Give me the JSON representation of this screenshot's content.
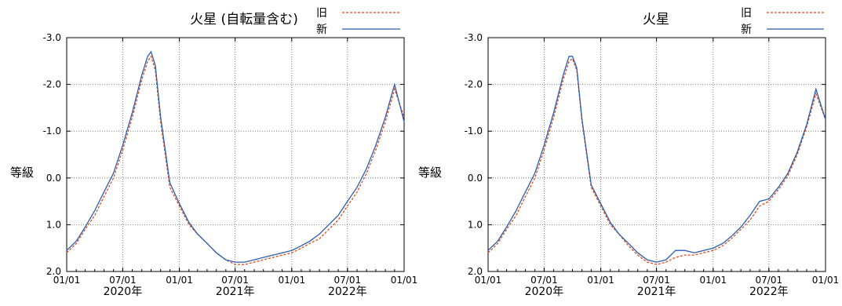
{
  "chart_data": [
    {
      "type": "line",
      "title": "火星 (自転量含む)",
      "ylabel": "等級",
      "xlabel": "",
      "ylim": [
        -3.0,
        2.0
      ],
      "y_inverted": true,
      "xlim": [
        "2020-01-01",
        "2023-01-01"
      ],
      "x_ticks": [
        "01/01",
        "07/01",
        "01/01",
        "07/01",
        "01/01",
        "07/01",
        "01/01"
      ],
      "x_tick_dates": [
        "2020-01-01",
        "2020-07-01",
        "2021-01-01",
        "2021-07-01",
        "2022-01-01",
        "2022-07-01",
        "2023-01-01"
      ],
      "year_labels": [
        "2020年",
        "2021年",
        "2022年"
      ],
      "year_label_dates": [
        "2020-07-01",
        "2021-07-01",
        "2022-07-01"
      ],
      "y_ticks": [
        "-3.0",
        "-2.0",
        "-1.0",
        "0.0",
        "1.0",
        "2.0"
      ],
      "y_tick_values": [
        -3.0,
        -2.0,
        -1.0,
        0.0,
        1.0,
        2.0
      ],
      "grid": true,
      "legend_position": "top-right",
      "series": [
        {
          "name": "旧",
          "color": "#e04a1a",
          "dash": true,
          "x": [
            "2020-01-01",
            "2020-02-01",
            "2020-03-01",
            "2020-04-01",
            "2020-05-01",
            "2020-06-01",
            "2020-07-01",
            "2020-08-01",
            "2020-09-01",
            "2020-09-20",
            "2020-10-01",
            "2020-10-15",
            "2020-11-01",
            "2020-12-01",
            "2021-01-01",
            "2021-02-01",
            "2021-03-01",
            "2021-04-01",
            "2021-05-01",
            "2021-06-01",
            "2021-07-01",
            "2021-08-01",
            "2021-09-01",
            "2021-10-01",
            "2021-11-01",
            "2021-12-01",
            "2022-01-01",
            "2022-02-01",
            "2022-03-01",
            "2022-04-01",
            "2022-05-01",
            "2022-06-01",
            "2022-07-01",
            "2022-08-01",
            "2022-09-01",
            "2022-10-01",
            "2022-11-01",
            "2022-12-01",
            "2023-01-01"
          ],
          "y": [
            1.6,
            1.4,
            1.1,
            0.8,
            0.4,
            0.0,
            -0.6,
            -1.3,
            -2.1,
            -2.5,
            -2.6,
            -2.3,
            -1.2,
            0.2,
            0.6,
            1.0,
            1.2,
            1.4,
            1.6,
            1.75,
            1.85,
            1.85,
            1.8,
            1.75,
            1.7,
            1.65,
            1.6,
            1.5,
            1.4,
            1.3,
            1.1,
            0.9,
            0.6,
            0.3,
            -0.1,
            -0.6,
            -1.2,
            -1.9,
            -1.3
          ]
        },
        {
          "name": "新",
          "color": "#2a5db0",
          "dash": false,
          "x": [
            "2020-01-01",
            "2020-02-01",
            "2020-03-01",
            "2020-04-01",
            "2020-05-01",
            "2020-06-01",
            "2020-07-01",
            "2020-08-01",
            "2020-09-01",
            "2020-09-20",
            "2020-10-01",
            "2020-10-15",
            "2020-11-01",
            "2020-12-01",
            "2021-01-01",
            "2021-02-01",
            "2021-03-01",
            "2021-04-01",
            "2021-05-01",
            "2021-06-01",
            "2021-07-01",
            "2021-08-01",
            "2021-09-01",
            "2021-10-01",
            "2021-11-01",
            "2021-12-01",
            "2022-01-01",
            "2022-02-01",
            "2022-03-01",
            "2022-04-01",
            "2022-05-01",
            "2022-06-01",
            "2022-07-01",
            "2022-08-01",
            "2022-09-01",
            "2022-10-01",
            "2022-11-01",
            "2022-12-01",
            "2023-01-01"
          ],
          "y": [
            1.55,
            1.35,
            1.05,
            0.7,
            0.3,
            -0.1,
            -0.7,
            -1.4,
            -2.2,
            -2.6,
            -2.7,
            -2.4,
            -1.3,
            0.1,
            0.55,
            0.95,
            1.2,
            1.4,
            1.6,
            1.75,
            1.8,
            1.8,
            1.75,
            1.7,
            1.65,
            1.6,
            1.55,
            1.45,
            1.35,
            1.2,
            1.0,
            0.8,
            0.5,
            0.2,
            -0.2,
            -0.7,
            -1.3,
            -2.0,
            -1.2
          ]
        }
      ]
    },
    {
      "type": "line",
      "title": "火星",
      "ylabel": "等級",
      "xlabel": "",
      "ylim": [
        -3.0,
        2.0
      ],
      "y_inverted": true,
      "xlim": [
        "2020-01-01",
        "2023-01-01"
      ],
      "x_ticks": [
        "01/01",
        "07/01",
        "01/01",
        "07/01",
        "01/01",
        "07/01",
        "01/01"
      ],
      "x_tick_dates": [
        "2020-01-01",
        "2020-07-01",
        "2021-01-01",
        "2021-07-01",
        "2022-01-01",
        "2022-07-01",
        "2023-01-01"
      ],
      "year_labels": [
        "2020年",
        "2021年",
        "2022年"
      ],
      "year_label_dates": [
        "2020-07-01",
        "2021-07-01",
        "2022-07-01"
      ],
      "y_ticks": [
        "-3.0",
        "-2.0",
        "-1.0",
        "0.0",
        "1.0",
        "2.0"
      ],
      "y_tick_values": [
        -3.0,
        -2.0,
        -1.0,
        0.0,
        1.0,
        2.0
      ],
      "grid": true,
      "legend_position": "top-right",
      "series": [
        {
          "name": "旧",
          "color": "#e04a1a",
          "dash": true,
          "x": [
            "2020-01-01",
            "2020-02-01",
            "2020-03-01",
            "2020-04-01",
            "2020-05-01",
            "2020-06-01",
            "2020-07-01",
            "2020-08-01",
            "2020-09-01",
            "2020-09-20",
            "2020-10-01",
            "2020-10-15",
            "2020-11-01",
            "2020-12-01",
            "2021-01-01",
            "2021-02-01",
            "2021-03-01",
            "2021-04-01",
            "2021-05-01",
            "2021-06-01",
            "2021-07-01",
            "2021-08-01",
            "2021-09-01",
            "2021-10-01",
            "2021-11-01",
            "2021-12-01",
            "2022-01-01",
            "2022-02-01",
            "2022-03-01",
            "2022-04-01",
            "2022-05-01",
            "2022-06-01",
            "2022-07-01",
            "2022-08-01",
            "2022-09-01",
            "2022-10-01",
            "2022-11-01",
            "2022-12-01",
            "2023-01-01"
          ],
          "y": [
            1.6,
            1.4,
            1.1,
            0.8,
            0.4,
            0.0,
            -0.6,
            -1.3,
            -2.1,
            -2.5,
            -2.55,
            -2.3,
            -1.2,
            0.2,
            0.6,
            1.0,
            1.2,
            1.45,
            1.65,
            1.8,
            1.85,
            1.8,
            1.7,
            1.65,
            1.65,
            1.6,
            1.55,
            1.45,
            1.3,
            1.1,
            0.9,
            0.6,
            0.5,
            0.25,
            -0.05,
            -0.5,
            -1.1,
            -1.8,
            -1.25
          ]
        },
        {
          "name": "新",
          "color": "#2a5db0",
          "dash": false,
          "x": [
            "2020-01-01",
            "2020-02-01",
            "2020-03-01",
            "2020-04-01",
            "2020-05-01",
            "2020-06-01",
            "2020-07-01",
            "2020-08-01",
            "2020-09-01",
            "2020-09-20",
            "2020-10-01",
            "2020-10-15",
            "2020-11-01",
            "2020-12-01",
            "2021-01-01",
            "2021-02-01",
            "2021-03-01",
            "2021-04-01",
            "2021-05-01",
            "2021-06-01",
            "2021-07-01",
            "2021-08-01",
            "2021-09-01",
            "2021-10-01",
            "2021-11-01",
            "2021-12-01",
            "2022-01-01",
            "2022-02-01",
            "2022-03-01",
            "2022-04-01",
            "2022-05-01",
            "2022-06-01",
            "2022-07-01",
            "2022-08-01",
            "2022-09-01",
            "2022-10-01",
            "2022-11-01",
            "2022-12-01",
            "2023-01-01"
          ],
          "y": [
            1.55,
            1.35,
            1.05,
            0.7,
            0.3,
            -0.1,
            -0.7,
            -1.4,
            -2.2,
            -2.6,
            -2.6,
            -2.35,
            -1.25,
            0.15,
            0.55,
            0.95,
            1.2,
            1.4,
            1.6,
            1.75,
            1.8,
            1.75,
            1.55,
            1.55,
            1.6,
            1.55,
            1.5,
            1.4,
            1.25,
            1.05,
            0.8,
            0.5,
            0.45,
            0.2,
            -0.1,
            -0.55,
            -1.15,
            -1.9,
            -1.25
          ]
        }
      ]
    }
  ]
}
